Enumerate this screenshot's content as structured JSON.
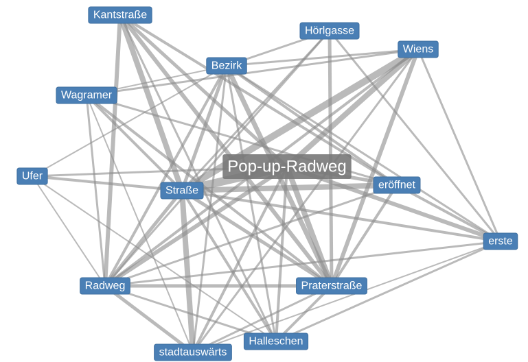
{
  "nodes": [
    {
      "label": "Kantstraße"
    },
    {
      "label": "Hörlgasse"
    },
    {
      "label": "Wiens"
    },
    {
      "label": "Bezirk"
    },
    {
      "label": "Wagramer"
    },
    {
      "label": "Ufer"
    },
    {
      "label": "Pop-up-Radweg"
    },
    {
      "label": "Straße"
    },
    {
      "label": "eröffnet"
    },
    {
      "label": "erste"
    },
    {
      "label": "Radweg"
    },
    {
      "label": "Praterstraße"
    },
    {
      "label": "Halleschen"
    },
    {
      "label": "stadtauswärts"
    }
  ],
  "edges": [
    {
      "source": 0,
      "target": 7,
      "weight": 8
    },
    {
      "source": 0,
      "target": 10,
      "weight": 6
    },
    {
      "source": 0,
      "target": 6,
      "weight": 5
    },
    {
      "source": 0,
      "target": 11,
      "weight": 6
    },
    {
      "source": 0,
      "target": 8,
      "weight": 4
    },
    {
      "source": 0,
      "target": 12,
      "weight": 3
    },
    {
      "source": 1,
      "target": 3,
      "weight": 3
    },
    {
      "source": 1,
      "target": 11,
      "weight": 5
    },
    {
      "source": 1,
      "target": 9,
      "weight": 3
    },
    {
      "source": 1,
      "target": 7,
      "weight": 3
    },
    {
      "source": 1,
      "target": 10,
      "weight": 3
    },
    {
      "source": 2,
      "target": 7,
      "weight": 10
    },
    {
      "source": 2,
      "target": 6,
      "weight": 8
    },
    {
      "source": 2,
      "target": 11,
      "weight": 6
    },
    {
      "source": 2,
      "target": 9,
      "weight": 3
    },
    {
      "source": 2,
      "target": 3,
      "weight": 3
    },
    {
      "source": 2,
      "target": 4,
      "weight": 3
    },
    {
      "source": 2,
      "target": 10,
      "weight": 4
    },
    {
      "source": 2,
      "target": 13,
      "weight": 3
    },
    {
      "source": 3,
      "target": 7,
      "weight": 5
    },
    {
      "source": 3,
      "target": 11,
      "weight": 7
    },
    {
      "source": 3,
      "target": 8,
      "weight": 4
    },
    {
      "source": 3,
      "target": 10,
      "weight": 4
    },
    {
      "source": 3,
      "target": 12,
      "weight": 3
    },
    {
      "source": 3,
      "target": 4,
      "weight": 2
    },
    {
      "source": 3,
      "target": 13,
      "weight": 3
    },
    {
      "source": 3,
      "target": 9,
      "weight": 3
    },
    {
      "source": 4,
      "target": 7,
      "weight": 4
    },
    {
      "source": 4,
      "target": 11,
      "weight": 4
    },
    {
      "source": 4,
      "target": 10,
      "weight": 3
    },
    {
      "source": 4,
      "target": 13,
      "weight": 2
    },
    {
      "source": 4,
      "target": 8,
      "weight": 3
    },
    {
      "source": 5,
      "target": 7,
      "weight": 4
    },
    {
      "source": 5,
      "target": 6,
      "weight": 3
    },
    {
      "source": 5,
      "target": 10,
      "weight": 2
    },
    {
      "source": 5,
      "target": 12,
      "weight": 2
    },
    {
      "source": 5,
      "target": 3,
      "weight": 2
    },
    {
      "source": 6,
      "target": 7,
      "weight": 12
    },
    {
      "source": 6,
      "target": 11,
      "weight": 8
    },
    {
      "source": 6,
      "target": 10,
      "weight": 6
    },
    {
      "source": 6,
      "target": 8,
      "weight": 5
    },
    {
      "source": 6,
      "target": 9,
      "weight": 6
    },
    {
      "source": 6,
      "target": 13,
      "weight": 4
    },
    {
      "source": 6,
      "target": 12,
      "weight": 4
    },
    {
      "source": 7,
      "target": 8,
      "weight": 8
    },
    {
      "source": 7,
      "target": 13,
      "weight": 8
    },
    {
      "source": 7,
      "target": 11,
      "weight": 5
    },
    {
      "source": 7,
      "target": 10,
      "weight": 5
    },
    {
      "source": 7,
      "target": 12,
      "weight": 4
    },
    {
      "source": 7,
      "target": 9,
      "weight": 4
    },
    {
      "source": 8,
      "target": 11,
      "weight": 4
    },
    {
      "source": 8,
      "target": 9,
      "weight": 4
    },
    {
      "source": 8,
      "target": 10,
      "weight": 3
    },
    {
      "source": 9,
      "target": 12,
      "weight": 3
    },
    {
      "source": 9,
      "target": 13,
      "weight": 2
    },
    {
      "source": 9,
      "target": 10,
      "weight": 3
    },
    {
      "source": 10,
      "target": 11,
      "weight": 5
    },
    {
      "source": 10,
      "target": 13,
      "weight": 5
    },
    {
      "source": 10,
      "target": 12,
      "weight": 3
    },
    {
      "source": 11,
      "target": 12,
      "weight": 4
    },
    {
      "source": 11,
      "target": 13,
      "weight": 3
    }
  ]
}
